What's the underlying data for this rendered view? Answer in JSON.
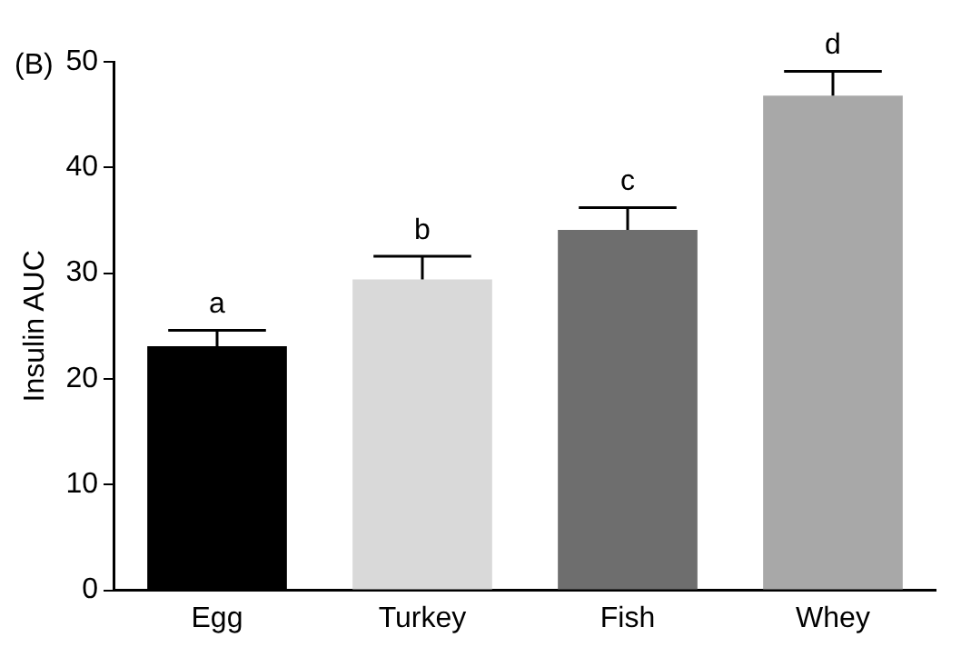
{
  "chart_data": {
    "type": "bar",
    "ylabel": "Insulin AUC",
    "categories": [
      "Egg",
      "Turkey",
      "Fish",
      "Whey"
    ],
    "values": [
      23.1,
      29.4,
      34.1,
      46.8
    ],
    "colors": [
      "#000000",
      "#d9d9d9",
      "#6e6e6e",
      "#a8a8a8"
    ],
    "errors": [
      [
        23.1,
        24.6
      ],
      [
        29.4,
        31.6
      ],
      [
        34.1,
        36.2
      ],
      [
        46.8,
        49.1
      ]
    ],
    "ylim": [
      0,
      50
    ],
    "yticks": [
      0,
      10,
      20,
      30,
      40,
      50
    ],
    "grid": false,
    "legend": false,
    "annotations": [
      {
        "text": "a",
        "x": "Egg",
        "y": 24.6
      },
      {
        "text": "b",
        "x": "Turkey",
        "y": 31.6
      },
      {
        "text": "c",
        "x": "Fish",
        "y": 36.2
      },
      {
        "text": "d",
        "x": "Whey",
        "y": 49.1
      },
      "(B)"
    ]
  }
}
